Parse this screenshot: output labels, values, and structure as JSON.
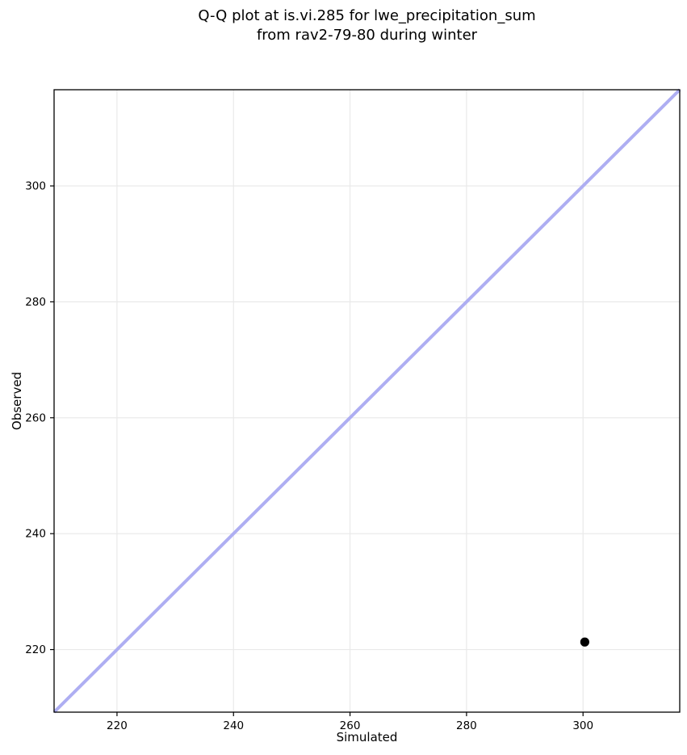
{
  "figure": {
    "kind": "matplotlib-qq-plot"
  },
  "chart_data": {
    "type": "scatter",
    "title": "Q-Q plot at is.vi.285 for lwe_precipitation_sum\nfrom rav2-79-80 during winter",
    "title_lines": [
      "Q-Q plot at is.vi.285 for lwe_precipitation_sum",
      "from rav2-79-80 during winter"
    ],
    "xlabel": "Simulated",
    "ylabel": "Observed",
    "xlim": [
      209.2,
      316.6
    ],
    "ylim": [
      209.2,
      316.6
    ],
    "xticks": [
      220,
      240,
      260,
      280,
      300
    ],
    "yticks": [
      220,
      240,
      260,
      280,
      300
    ],
    "grid": true,
    "legend": "none",
    "series": [
      {
        "name": "quantile-points",
        "marker": "circle",
        "color": "#000000",
        "marker_radius": 5.6,
        "points": [
          {
            "x": 300.3,
            "y": 221.3
          }
        ]
      }
    ],
    "reference_line": {
      "kind": "identity",
      "x1": 209.2,
      "y1": 209.2,
      "x2": 316.6,
      "y2": 316.6,
      "color": "#aeaef2",
      "width": 4
    },
    "colors": {
      "grid": "#e9e9e9",
      "spine": "#000000",
      "tick": "#000000",
      "text": "#000000",
      "background": "#ffffff"
    },
    "tick_font_px": 13.5,
    "label_font_px": 15,
    "title_font_px": 18
  }
}
